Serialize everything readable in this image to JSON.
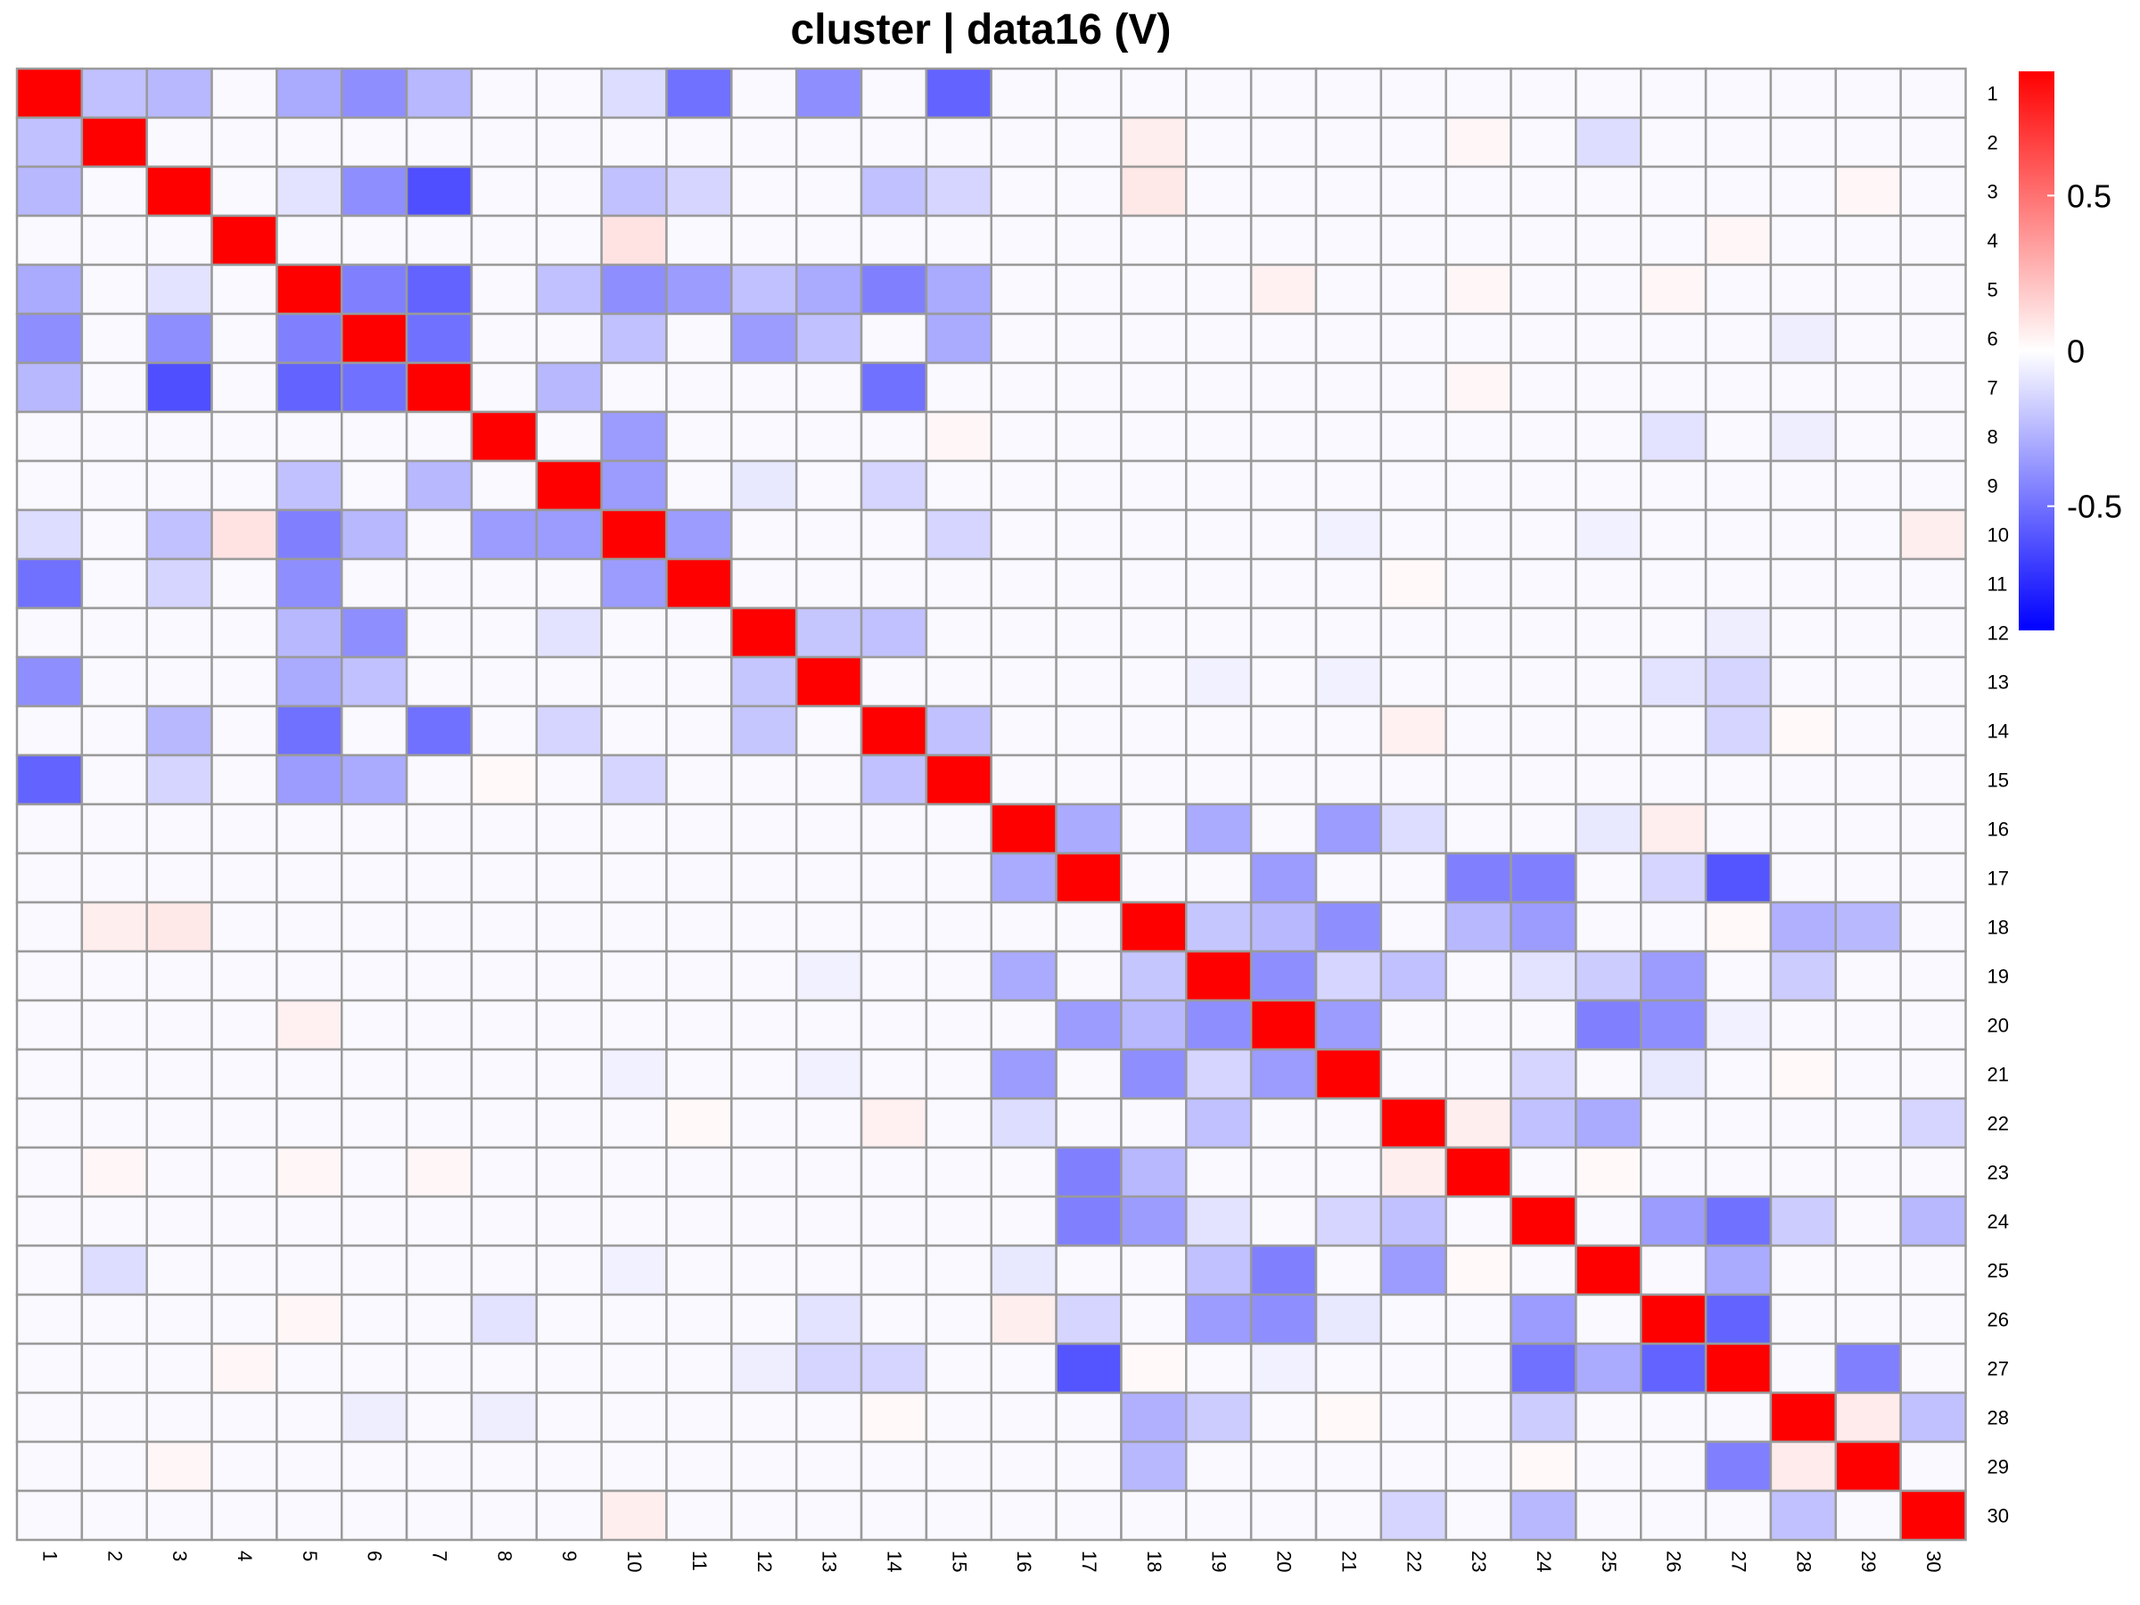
{
  "chart_data": {
    "type": "heatmap",
    "title": "cluster | data16 (V)",
    "xlabel": "",
    "ylabel": "",
    "row_labels": [
      "1",
      "2",
      "3",
      "4",
      "5",
      "6",
      "7",
      "8",
      "9",
      "10",
      "11",
      "12",
      "13",
      "14",
      "15",
      "16",
      "17",
      "18",
      "19",
      "20",
      "21",
      "22",
      "23",
      "24",
      "25",
      "26",
      "27",
      "28",
      "29",
      "30"
    ],
    "col_labels": [
      "1",
      "2",
      "3",
      "4",
      "5",
      "6",
      "7",
      "8",
      "9",
      "10",
      "11",
      "12",
      "13",
      "14",
      "15",
      "16",
      "17",
      "18",
      "19",
      "20",
      "21",
      "22",
      "23",
      "24",
      "25",
      "26",
      "27",
      "28",
      "29",
      "30"
    ],
    "value_range": [
      -0.9,
      0.9
    ],
    "colorscale": {
      "low": "#0000FF",
      "mid": "#FFFFFF",
      "high": "#FF0000"
    },
    "empty_value": -0.02,
    "grid": true,
    "legend": {
      "position": "right",
      "ticks": [
        0.5,
        0,
        -0.5
      ],
      "tick_labels": [
        "0.5",
        "0",
        "-0.5"
      ]
    },
    "cells": [
      [
        1,
        1,
        0.9
      ],
      [
        2,
        2,
        0.9
      ],
      [
        3,
        3,
        0.9
      ],
      [
        4,
        4,
        0.9
      ],
      [
        5,
        5,
        0.9
      ],
      [
        6,
        6,
        0.9
      ],
      [
        7,
        7,
        0.9
      ],
      [
        8,
        8,
        0.9
      ],
      [
        9,
        9,
        0.9
      ],
      [
        10,
        10,
        0.9
      ],
      [
        11,
        11,
        0.9
      ],
      [
        12,
        12,
        0.9
      ],
      [
        13,
        13,
        0.9
      ],
      [
        14,
        14,
        0.9
      ],
      [
        15,
        15,
        0.9
      ],
      [
        16,
        16,
        0.9
      ],
      [
        17,
        17,
        0.9
      ],
      [
        18,
        18,
        0.9
      ],
      [
        19,
        19,
        0.9
      ],
      [
        20,
        20,
        0.9
      ],
      [
        21,
        21,
        0.9
      ],
      [
        22,
        22,
        0.9
      ],
      [
        23,
        23,
        0.9
      ],
      [
        24,
        24,
        0.9
      ],
      [
        25,
        25,
        0.9
      ],
      [
        26,
        26,
        0.9
      ],
      [
        27,
        27,
        0.9
      ],
      [
        28,
        28,
        0.9
      ],
      [
        29,
        29,
        0.9
      ],
      [
        30,
        30,
        0.9
      ],
      [
        1,
        2,
        -0.22
      ],
      [
        1,
        3,
        -0.25
      ],
      [
        1,
        5,
        -0.3
      ],
      [
        1,
        6,
        -0.4
      ],
      [
        1,
        7,
        -0.25
      ],
      [
        1,
        10,
        -0.12
      ],
      [
        1,
        11,
        -0.5
      ],
      [
        1,
        13,
        -0.4
      ],
      [
        1,
        15,
        -0.55
      ],
      [
        2,
        1,
        -0.22
      ],
      [
        2,
        18,
        0.06
      ],
      [
        2,
        23,
        0.03
      ],
      [
        2,
        25,
        -0.12
      ],
      [
        3,
        1,
        -0.25
      ],
      [
        3,
        5,
        -0.1
      ],
      [
        3,
        6,
        -0.4
      ],
      [
        3,
        7,
        -0.62
      ],
      [
        3,
        10,
        -0.22
      ],
      [
        3,
        11,
        -0.15
      ],
      [
        3,
        14,
        -0.22
      ],
      [
        3,
        15,
        -0.15
      ],
      [
        3,
        18,
        0.08
      ],
      [
        3,
        29,
        0.03
      ],
      [
        4,
        10,
        0.1
      ],
      [
        4,
        27,
        0.03
      ],
      [
        5,
        1,
        -0.3
      ],
      [
        5,
        3,
        -0.1
      ],
      [
        5,
        6,
        -0.45
      ],
      [
        5,
        7,
        -0.55
      ],
      [
        5,
        9,
        -0.22
      ],
      [
        5,
        10,
        -0.4
      ],
      [
        5,
        11,
        -0.35
      ],
      [
        5,
        12,
        -0.22
      ],
      [
        5,
        13,
        -0.3
      ],
      [
        5,
        14,
        -0.45
      ],
      [
        5,
        15,
        -0.3
      ],
      [
        5,
        20,
        0.05
      ],
      [
        5,
        23,
        0.03
      ],
      [
        5,
        26,
        0.03
      ],
      [
        6,
        1,
        -0.4
      ],
      [
        6,
        3,
        -0.4
      ],
      [
        6,
        5,
        -0.45
      ],
      [
        6,
        7,
        -0.5
      ],
      [
        6,
        10,
        -0.22
      ],
      [
        6,
        12,
        -0.35
      ],
      [
        6,
        13,
        -0.22
      ],
      [
        6,
        15,
        -0.3
      ],
      [
        6,
        28,
        -0.06
      ],
      [
        7,
        1,
        -0.25
      ],
      [
        7,
        3,
        -0.62
      ],
      [
        7,
        5,
        -0.55
      ],
      [
        7,
        6,
        -0.5
      ],
      [
        7,
        9,
        -0.25
      ],
      [
        7,
        14,
        -0.5
      ],
      [
        7,
        23,
        0.03
      ],
      [
        8,
        10,
        -0.35
      ],
      [
        8,
        15,
        0.03
      ],
      [
        8,
        26,
        -0.1
      ],
      [
        8,
        28,
        -0.06
      ],
      [
        9,
        5,
        -0.22
      ],
      [
        9,
        7,
        -0.25
      ],
      [
        9,
        10,
        -0.35
      ],
      [
        9,
        12,
        -0.08
      ],
      [
        9,
        14,
        -0.15
      ],
      [
        10,
        1,
        -0.12
      ],
      [
        10,
        3,
        -0.22
      ],
      [
        10,
        4,
        0.1
      ],
      [
        10,
        5,
        -0.45
      ],
      [
        10,
        6,
        -0.25
      ],
      [
        10,
        8,
        -0.35
      ],
      [
        10,
        9,
        -0.35
      ],
      [
        10,
        11,
        -0.35
      ],
      [
        10,
        15,
        -0.15
      ],
      [
        10,
        21,
        -0.05
      ],
      [
        10,
        25,
        -0.05
      ],
      [
        10,
        30,
        0.06
      ],
      [
        11,
        1,
        -0.5
      ],
      [
        11,
        3,
        -0.15
      ],
      [
        11,
        5,
        -0.4
      ],
      [
        11,
        10,
        -0.35
      ],
      [
        11,
        22,
        0.02
      ],
      [
        12,
        5,
        -0.25
      ],
      [
        12,
        6,
        -0.4
      ],
      [
        12,
        9,
        -0.1
      ],
      [
        12,
        13,
        -0.2
      ],
      [
        12,
        14,
        -0.22
      ],
      [
        12,
        27,
        -0.06
      ],
      [
        13,
        1,
        -0.4
      ],
      [
        13,
        5,
        -0.3
      ],
      [
        13,
        6,
        -0.22
      ],
      [
        13,
        12,
        -0.2
      ],
      [
        13,
        19,
        -0.05
      ],
      [
        13,
        21,
        -0.05
      ],
      [
        13,
        26,
        -0.1
      ],
      [
        13,
        27,
        -0.15
      ],
      [
        14,
        3,
        -0.25
      ],
      [
        14,
        5,
        -0.5
      ],
      [
        14,
        7,
        -0.5
      ],
      [
        14,
        9,
        -0.15
      ],
      [
        14,
        12,
        -0.2
      ],
      [
        14,
        15,
        -0.22
      ],
      [
        14,
        22,
        0.05
      ],
      [
        14,
        27,
        -0.15
      ],
      [
        14,
        28,
        0.02
      ],
      [
        15,
        1,
        -0.55
      ],
      [
        15,
        3,
        -0.15
      ],
      [
        15,
        5,
        -0.35
      ],
      [
        15,
        6,
        -0.3
      ],
      [
        15,
        8,
        0.02
      ],
      [
        15,
        10,
        -0.15
      ],
      [
        15,
        14,
        -0.22
      ],
      [
        16,
        17,
        -0.3
      ],
      [
        16,
        19,
        -0.3
      ],
      [
        16,
        21,
        -0.35
      ],
      [
        16,
        22,
        -0.12
      ],
      [
        16,
        25,
        -0.08
      ],
      [
        16,
        26,
        0.06
      ],
      [
        17,
        16,
        -0.3
      ],
      [
        17,
        20,
        -0.35
      ],
      [
        17,
        23,
        -0.45
      ],
      [
        17,
        24,
        -0.45
      ],
      [
        17,
        26,
        -0.15
      ],
      [
        17,
        27,
        -0.6
      ],
      [
        18,
        2,
        0.06
      ],
      [
        18,
        3,
        0.08
      ],
      [
        18,
        19,
        -0.2
      ],
      [
        18,
        20,
        -0.25
      ],
      [
        18,
        21,
        -0.4
      ],
      [
        18,
        23,
        -0.25
      ],
      [
        18,
        24,
        -0.35
      ],
      [
        18,
        27,
        0.02
      ],
      [
        18,
        28,
        -0.28
      ],
      [
        18,
        29,
        -0.25
      ],
      [
        19,
        13,
        -0.05
      ],
      [
        19,
        16,
        -0.3
      ],
      [
        19,
        18,
        -0.2
      ],
      [
        19,
        20,
        -0.4
      ],
      [
        19,
        21,
        -0.15
      ],
      [
        19,
        22,
        -0.22
      ],
      [
        19,
        24,
        -0.1
      ],
      [
        19,
        25,
        -0.18
      ],
      [
        19,
        26,
        -0.35
      ],
      [
        19,
        28,
        -0.18
      ],
      [
        20,
        5,
        0.05
      ],
      [
        20,
        17,
        -0.35
      ],
      [
        20,
        18,
        -0.25
      ],
      [
        20,
        19,
        -0.4
      ],
      [
        20,
        21,
        -0.35
      ],
      [
        20,
        25,
        -0.45
      ],
      [
        20,
        26,
        -0.4
      ],
      [
        20,
        27,
        -0.05
      ],
      [
        21,
        10,
        -0.05
      ],
      [
        21,
        13,
        -0.05
      ],
      [
        21,
        16,
        -0.35
      ],
      [
        21,
        18,
        -0.4
      ],
      [
        21,
        19,
        -0.15
      ],
      [
        21,
        20,
        -0.35
      ],
      [
        21,
        24,
        -0.15
      ],
      [
        21,
        26,
        -0.08
      ],
      [
        21,
        28,
        0.02
      ],
      [
        22,
        11,
        0.02
      ],
      [
        22,
        14,
        0.05
      ],
      [
        22,
        16,
        -0.12
      ],
      [
        22,
        19,
        -0.22
      ],
      [
        22,
        23,
        0.06
      ],
      [
        22,
        24,
        -0.22
      ],
      [
        22,
        25,
        -0.3
      ],
      [
        22,
        30,
        -0.15
      ],
      [
        23,
        2,
        0.03
      ],
      [
        23,
        5,
        0.03
      ],
      [
        23,
        7,
        0.03
      ],
      [
        23,
        17,
        -0.45
      ],
      [
        23,
        18,
        -0.25
      ],
      [
        23,
        22,
        0.06
      ],
      [
        23,
        25,
        0.02
      ],
      [
        24,
        17,
        -0.45
      ],
      [
        24,
        18,
        -0.35
      ],
      [
        24,
        19,
        -0.1
      ],
      [
        24,
        21,
        -0.15
      ],
      [
        24,
        22,
        -0.22
      ],
      [
        24,
        26,
        -0.35
      ],
      [
        24,
        27,
        -0.5
      ],
      [
        24,
        28,
        -0.18
      ],
      [
        24,
        30,
        -0.25
      ],
      [
        25,
        2,
        -0.12
      ],
      [
        25,
        10,
        -0.05
      ],
      [
        25,
        16,
        -0.08
      ],
      [
        25,
        19,
        -0.22
      ],
      [
        25,
        20,
        -0.45
      ],
      [
        25,
        22,
        -0.35
      ],
      [
        25,
        23,
        0.02
      ],
      [
        25,
        27,
        -0.3
      ],
      [
        26,
        5,
        0.03
      ],
      [
        26,
        8,
        -0.1
      ],
      [
        26,
        13,
        -0.1
      ],
      [
        26,
        16,
        0.06
      ],
      [
        26,
        17,
        -0.15
      ],
      [
        26,
        19,
        -0.35
      ],
      [
        26,
        20,
        -0.4
      ],
      [
        26,
        21,
        -0.08
      ],
      [
        26,
        24,
        -0.35
      ],
      [
        26,
        27,
        -0.55
      ],
      [
        27,
        4,
        0.03
      ],
      [
        27,
        12,
        -0.06
      ],
      [
        27,
        13,
        -0.15
      ],
      [
        27,
        14,
        -0.15
      ],
      [
        27,
        17,
        -0.6
      ],
      [
        27,
        18,
        0.02
      ],
      [
        27,
        20,
        -0.05
      ],
      [
        27,
        24,
        -0.5
      ],
      [
        27,
        25,
        -0.3
      ],
      [
        27,
        26,
        -0.55
      ],
      [
        27,
        29,
        -0.45
      ],
      [
        28,
        6,
        -0.06
      ],
      [
        28,
        8,
        -0.06
      ],
      [
        28,
        14,
        0.02
      ],
      [
        28,
        18,
        -0.28
      ],
      [
        28,
        19,
        -0.18
      ],
      [
        28,
        21,
        0.02
      ],
      [
        28,
        24,
        -0.18
      ],
      [
        28,
        29,
        0.07
      ],
      [
        28,
        30,
        -0.22
      ],
      [
        29,
        3,
        0.03
      ],
      [
        29,
        18,
        -0.25
      ],
      [
        29,
        24,
        0.02
      ],
      [
        29,
        27,
        -0.45
      ],
      [
        29,
        28,
        0.07
      ],
      [
        30,
        10,
        0.06
      ],
      [
        30,
        22,
        -0.15
      ],
      [
        30,
        24,
        -0.25
      ],
      [
        30,
        28,
        -0.22
      ]
    ]
  }
}
